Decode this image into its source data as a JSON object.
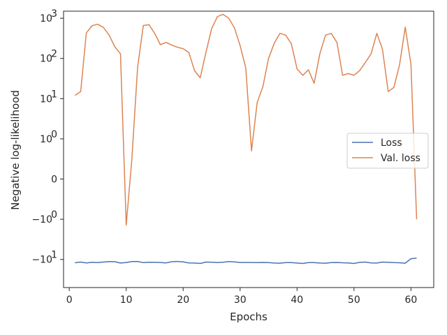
{
  "chart_data": {
    "type": "line",
    "title": "",
    "xlabel": "Epochs",
    "ylabel": "Negative log-likelihood",
    "yscale": "symlog",
    "xlim": [
      -1.0,
      64.0
    ],
    "ylim": [
      -50,
      1500
    ],
    "grid": false,
    "legend_position": "center-right",
    "x_ticks": [
      {
        "value": 0,
        "label": "0"
      },
      {
        "value": 10,
        "label": "10"
      },
      {
        "value": 20,
        "label": "20"
      },
      {
        "value": 30,
        "label": "30"
      },
      {
        "value": 40,
        "label": "40"
      },
      {
        "value": 50,
        "label": "50"
      },
      {
        "value": 60,
        "label": "60"
      }
    ],
    "y_ticks": [
      {
        "value": 1000,
        "label": "10",
        "exp": "3"
      },
      {
        "value": 100,
        "label": "10",
        "exp": "2"
      },
      {
        "value": 10,
        "label": "10",
        "exp": "1"
      },
      {
        "value": 1,
        "label": "10",
        "exp": "0"
      },
      {
        "value": 0,
        "label": "0",
        "exp": ""
      },
      {
        "value": -1,
        "label": "−10",
        "exp": "0"
      },
      {
        "value": -10,
        "label": "−10",
        "exp": "1"
      }
    ],
    "x": [
      1,
      2,
      3,
      4,
      5,
      6,
      7,
      8,
      9,
      10,
      11,
      12,
      13,
      14,
      15,
      16,
      17,
      18,
      19,
      20,
      21,
      22,
      23,
      24,
      25,
      26,
      27,
      28,
      29,
      30,
      31,
      32,
      33,
      34,
      35,
      36,
      37,
      38,
      39,
      40,
      41,
      42,
      43,
      44,
      45,
      46,
      47,
      48,
      49,
      50,
      51,
      52,
      53,
      54,
      55,
      56,
      57,
      58,
      59,
      60,
      61
    ],
    "series": [
      {
        "name": "Loss",
        "color": "#4c72b0",
        "values": [
          -12.1,
          -11.6,
          -12.2,
          -11.8,
          -12.0,
          -11.6,
          -11.3,
          -11.4,
          -12.3,
          -11.9,
          -11.3,
          -11.2,
          -12.0,
          -11.7,
          -11.8,
          -11.9,
          -12.2,
          -11.4,
          -11.2,
          -11.5,
          -12.2,
          -12.3,
          -12.6,
          -11.6,
          -11.7,
          -11.9,
          -11.7,
          -11.3,
          -11.5,
          -11.9,
          -11.9,
          -11.9,
          -12.0,
          -11.9,
          -12.0,
          -12.3,
          -12.4,
          -12.0,
          -12.0,
          -12.3,
          -12.6,
          -12.0,
          -12.0,
          -12.3,
          -12.4,
          -12.0,
          -11.9,
          -12.1,
          -12.2,
          -12.6,
          -11.8,
          -11.6,
          -12.2,
          -12.3,
          -11.6,
          -11.8,
          -12.0,
          -12.1,
          -12.4,
          -9.6,
          -9.2
        ]
      },
      {
        "name": "Val. loss",
        "color": "#dd8452",
        "values": [
          12,
          15,
          430,
          650,
          710,
          590,
          380,
          195,
          130,
          -1.4,
          0.5,
          60,
          660,
          690,
          420,
          220,
          250,
          215,
          190,
          175,
          140,
          50,
          33,
          140,
          550,
          1100,
          1250,
          1000,
          580,
          210,
          58,
          0.7,
          8,
          20,
          100,
          240,
          420,
          380,
          230,
          55,
          38,
          52,
          24,
          130,
          380,
          420,
          250,
          38,
          42,
          38,
          50,
          80,
          130,
          420,
          170,
          15,
          19,
          70,
          600,
          72,
          -1
        ]
      }
    ]
  }
}
